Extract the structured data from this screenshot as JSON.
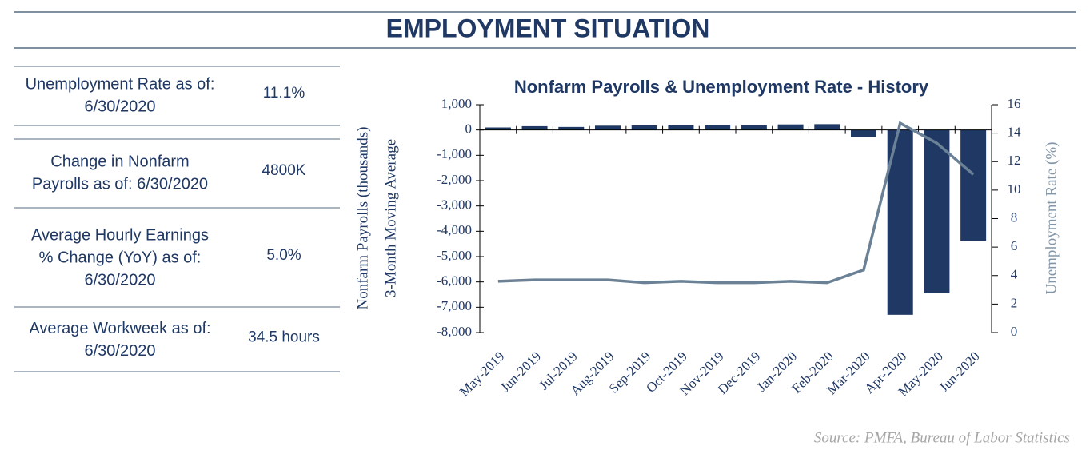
{
  "header": {
    "title": "EMPLOYMENT SITUATION"
  },
  "stats": [
    {
      "label": [
        "Unemployment Rate as of:",
        "6/30/2020"
      ],
      "value": "11.1%"
    },
    {
      "label": [
        "Change in Nonfarm",
        "Payrolls as of: 6/30/2020"
      ],
      "value": "4800K"
    },
    {
      "label": [
        "Average Hourly Earnings",
        "% Change (YoY) as of:",
        "6/30/2020"
      ],
      "value": "5.0%"
    },
    {
      "label": [
        "Average Workweek as of:",
        "6/30/2020"
      ],
      "value": "34.5 hours"
    }
  ],
  "chart_data": {
    "type": "bar-line",
    "title": "Nonfarm Payrolls & Unemployment Rate - History",
    "ylabel": [
      "Nonfarm Payrolls (thousands)",
      "3-Month Moving Average"
    ],
    "y2label": "Unemployment  Rate (%)",
    "categories": [
      "May-2019",
      "Jun-2019",
      "Jul-2019",
      "Aug-2019",
      "Sep-2019",
      "Oct-2019",
      "Nov-2019",
      "Dec-2019",
      "Jan-2020",
      "Feb-2020",
      "Mar-2020",
      "Apr-2020",
      "May-2020",
      "Jun-2020"
    ],
    "series": [
      {
        "type": "bar",
        "color": "#1f3864",
        "values": [
          100,
          150,
          120,
          170,
          180,
          180,
          210,
          210,
          220,
          230,
          -280,
          -7300,
          -6450,
          -4380
        ]
      },
      {
        "type": "line",
        "axis": "y2",
        "color": "#6a8196",
        "values": [
          3.6,
          3.7,
          3.7,
          3.7,
          3.5,
          3.6,
          3.5,
          3.5,
          3.6,
          3.5,
          4.4,
          14.7,
          13.3,
          11.1
        ]
      }
    ],
    "ylim": [
      -8000,
      1000
    ],
    "yticks": [
      {
        "value": 1000,
        "label": "1,000"
      },
      0,
      {
        "value": -1000,
        "label": "-1,000"
      },
      {
        "value": -2000,
        "label": "-2,000"
      },
      {
        "value": -3000,
        "label": "-3,000"
      },
      {
        "value": -4000,
        "label": "-4,000"
      },
      {
        "value": -5000,
        "label": "-5,000"
      },
      {
        "value": -6000,
        "label": "-6,000"
      },
      {
        "value": -7000,
        "label": "-7,000"
      },
      {
        "value": -8000,
        "label": "-8,000"
      }
    ],
    "y2lim": [
      0,
      16
    ],
    "y2ticks": [
      0,
      2,
      4,
      6,
      8,
      10,
      12,
      14,
      16
    ],
    "grid": false
  },
  "source": "Source:  PMFA,  Bureau of Labor Statistics"
}
